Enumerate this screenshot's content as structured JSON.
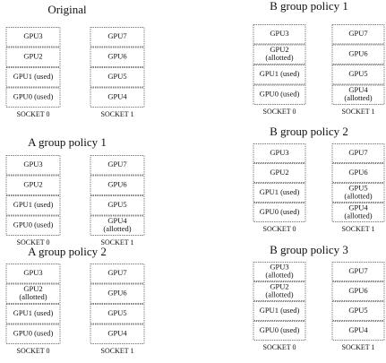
{
  "panels": [
    {
      "title": "Original",
      "sockets": [
        {
          "label": "SOCKET 0",
          "gpus": [
            [
              "GPU3"
            ],
            [
              "GPU2"
            ],
            [
              "GPU1 (used)"
            ],
            [
              "GPU0 (used)"
            ]
          ]
        },
        {
          "label": "SOCKET 1",
          "gpus": [
            [
              "GPU7"
            ],
            [
              "GPU6"
            ],
            [
              "GPU5"
            ],
            [
              "GPU4"
            ]
          ]
        }
      ]
    },
    {
      "title": "A group policy 1",
      "sockets": [
        {
          "label": "SOCKET 0",
          "gpus": [
            [
              "GPU3"
            ],
            [
              "GPU2"
            ],
            [
              "GPU1 (used)"
            ],
            [
              "GPU0 (used)"
            ]
          ]
        },
        {
          "label": "SOCKET 1",
          "gpus": [
            [
              "GPU7"
            ],
            [
              "GPU6"
            ],
            [
              "GPU5"
            ],
            [
              "GPU4",
              "(allotted)"
            ]
          ]
        }
      ]
    },
    {
      "title": "A group policy 2",
      "sockets": [
        {
          "label": "SOCKET 0",
          "gpus": [
            [
              "GPU3"
            ],
            [
              "GPU2",
              "(allotted)"
            ],
            [
              "GPU1 (used)"
            ],
            [
              "GPU0 (used)"
            ]
          ]
        },
        {
          "label": "SOCKET 1",
          "gpus": [
            [
              "GPU7"
            ],
            [
              "GPU6"
            ],
            [
              "GPU5"
            ],
            [
              "GPU4"
            ]
          ]
        }
      ]
    },
    {
      "title": "B group policy 1",
      "sockets": [
        {
          "label": "SOCKET 0",
          "gpus": [
            [
              "GPU3"
            ],
            [
              "GPU2",
              "(allotted)"
            ],
            [
              "GPU1 (used)"
            ],
            [
              "GPU0 (used)"
            ]
          ]
        },
        {
          "label": "SOCKET 1",
          "gpus": [
            [
              "GPU7"
            ],
            [
              "GPU6"
            ],
            [
              "GPU5"
            ],
            [
              "GPU4",
              "(allotted)"
            ]
          ]
        }
      ]
    },
    {
      "title": "B group policy 2",
      "sockets": [
        {
          "label": "SOCKET 0",
          "gpus": [
            [
              "GPU3"
            ],
            [
              "GPU2"
            ],
            [
              "GPU1 (used)"
            ],
            [
              "GPU0 (used)"
            ]
          ]
        },
        {
          "label": "SOCKET 1",
          "gpus": [
            [
              "GPU7"
            ],
            [
              "GPU6"
            ],
            [
              "GPU5",
              "(allotted)"
            ],
            [
              "GPU4",
              "(allotted)"
            ]
          ]
        }
      ]
    },
    {
      "title": "B group policy 3",
      "sockets": [
        {
          "label": "SOCKET 0",
          "gpus": [
            [
              "GPU3",
              "(allotted)"
            ],
            [
              "GPU2",
              "(allotted)"
            ],
            [
              "GPU1 (used)"
            ],
            [
              "GPU0 (used)"
            ]
          ]
        },
        {
          "label": "SOCKET 1",
          "gpus": [
            [
              "GPU7"
            ],
            [
              "GPU6"
            ],
            [
              "GPU5"
            ],
            [
              "GPU4"
            ]
          ]
        }
      ]
    }
  ]
}
